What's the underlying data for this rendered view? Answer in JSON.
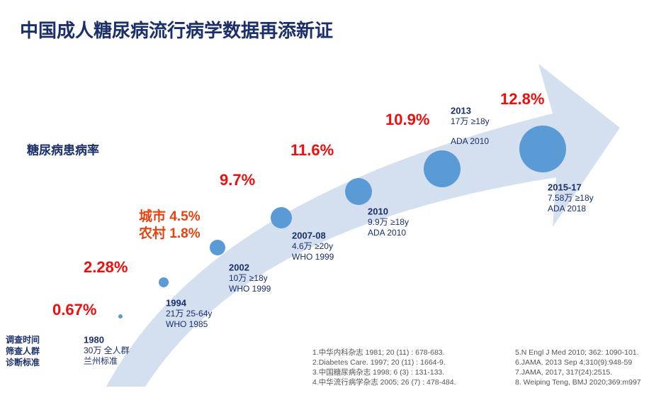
{
  "title": "中国成人糖尿病流行病学数据再添新证",
  "prevalence_label": "糖尿病患病率",
  "row_labels": [
    "调查时间",
    "筛查人群",
    "诊断标准"
  ],
  "milestones": [
    {
      "rate": [
        "0.67%"
      ],
      "year": "1980",
      "sample": "30万 全人群",
      "criteria": "兰州标准"
    },
    {
      "rate": [
        "2.28%"
      ],
      "year": "1994",
      "sample": "21万  25-64y",
      "criteria": "WHO 1985"
    },
    {
      "rate": [
        "城市 4.5%",
        "农村 1.8%"
      ],
      "year": "2002",
      "sample": "10万  ≥18y",
      "criteria": "WHO 1999"
    },
    {
      "rate": [
        "9.7%"
      ],
      "year": "2007-08",
      "sample": "4.6万  ≥20y",
      "criteria": "WHO 1999"
    },
    {
      "rate": [
        "11.6%"
      ],
      "year": "2010",
      "sample": "9.9万  ≥18y",
      "criteria": "ADA 2010"
    },
    {
      "rate": [
        "10.9%"
      ],
      "year": "2013",
      "sample": "17万  ≥18y",
      "criteria": "ADA 2010"
    },
    {
      "rate": [
        "12.8%"
      ],
      "year": "2015-17",
      "sample": "7.58万  ≥18y",
      "criteria": "ADA 2018"
    }
  ],
  "references": [
    "1.中华内科杂志 1981; 20 (11) : 678-683.",
    "2.Diabetes Care. 1997; 20 (11) : 1664-9.",
    "3.中国糖尿病杂志 1998; 6 (3) : 131-133.",
    "4.中华流行病学杂志 2005; 26 (7) : 478-484.",
    "5.N Engl J Med 2010; 362: 1090-101.",
    "6.JAMA. 2013 Sep 4;310(9):948-59",
    "7.JAMA, 2017, 317(24):2515.",
    "8. Weiping Teng, BMJ 2020;369:m997"
  ]
}
